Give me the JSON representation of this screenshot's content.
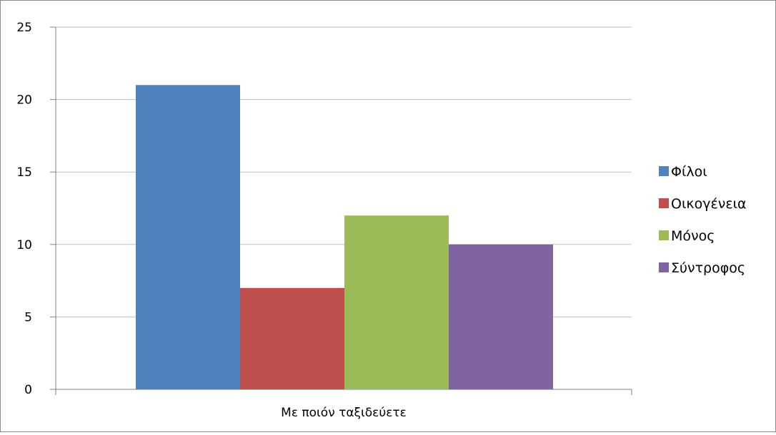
{
  "chart_data": {
    "type": "bar",
    "categories": [
      "Με ποιόν ταξιδεύετε"
    ],
    "series": [
      {
        "name": "Φίλοι",
        "values": [
          21
        ],
        "color": "#4f81bd"
      },
      {
        "name": "Οικογένεια",
        "values": [
          7
        ],
        "color": "#c0504d"
      },
      {
        "name": "Μόνος",
        "values": [
          12
        ],
        "color": "#9bbb59"
      },
      {
        "name": "Σύντροφος",
        "values": [
          10
        ],
        "color": "#8064a2"
      }
    ],
    "title": "",
    "xlabel": "",
    "ylabel": "",
    "ylim": [
      0,
      25
    ],
    "yticks": [
      0,
      5,
      10,
      15,
      20,
      25
    ],
    "grid": true,
    "legend": "right"
  }
}
